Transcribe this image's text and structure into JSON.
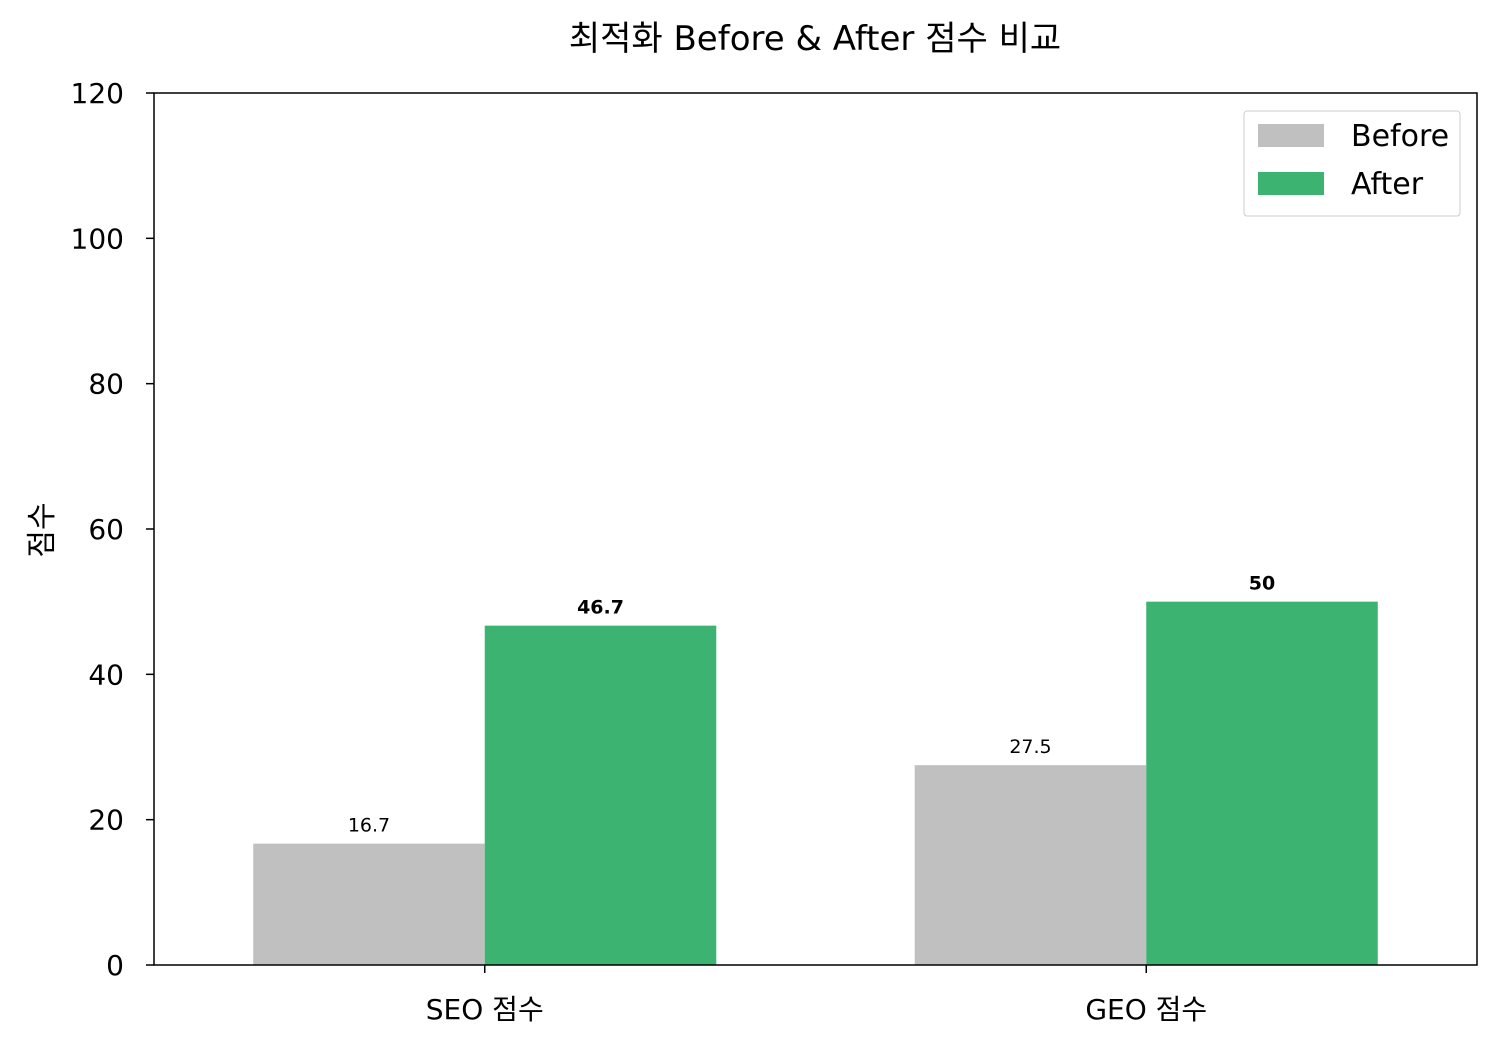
{
  "chart_data": {
    "type": "bar",
    "title": "최적화 Before & After 점수 비교",
    "xlabel": "",
    "ylabel": "점수",
    "categories": [
      "SEO 점수",
      "GEO 점수"
    ],
    "series": [
      {
        "name": "Before",
        "values": [
          16.7,
          27.5
        ],
        "labels": [
          "16.7",
          "27.5"
        ],
        "color": "#c0c0c0",
        "label_bold": false
      },
      {
        "name": "After",
        "values": [
          46.7,
          50
        ],
        "labels": [
          "46.7",
          "50"
        ],
        "color": "#3cb371",
        "label_bold": true
      }
    ],
    "ylim": [
      0,
      120
    ],
    "yticks": [
      0,
      20,
      40,
      60,
      80,
      100,
      120
    ],
    "grid": false,
    "legend_position": "top-right"
  }
}
